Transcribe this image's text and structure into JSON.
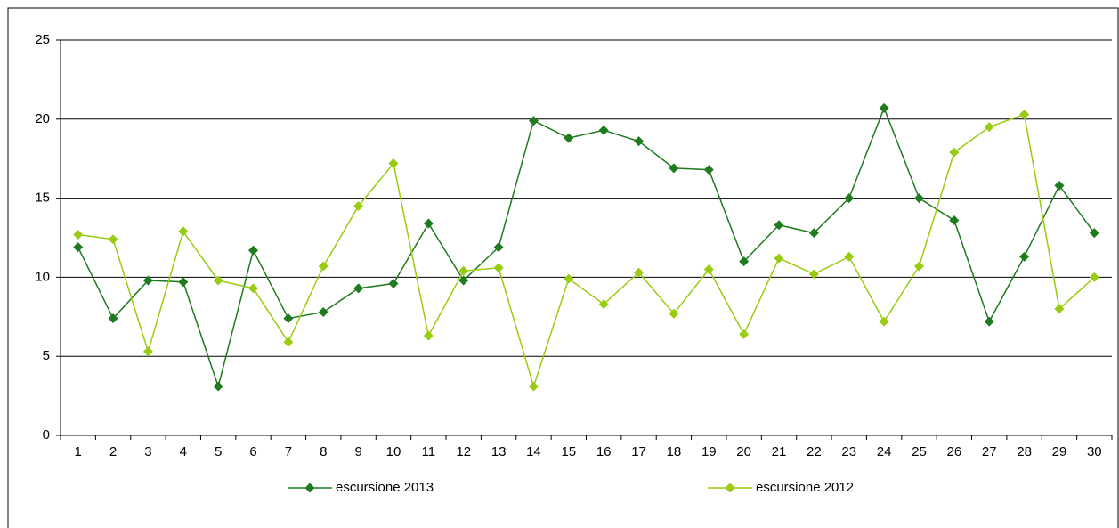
{
  "chart_data": {
    "type": "line",
    "categories": [
      "1",
      "2",
      "3",
      "4",
      "5",
      "6",
      "7",
      "8",
      "9",
      "10",
      "11",
      "12",
      "13",
      "14",
      "15",
      "16",
      "17",
      "18",
      "19",
      "20",
      "21",
      "22",
      "23",
      "24",
      "25",
      "26",
      "27",
      "28",
      "29",
      "30"
    ],
    "series": [
      {
        "name": "escursione 2013",
        "color": "#1e7b1e",
        "values": [
          11.9,
          7.4,
          9.8,
          9.7,
          3.1,
          11.7,
          7.4,
          7.8,
          9.3,
          9.6,
          13.4,
          9.8,
          11.9,
          19.9,
          18.8,
          19.3,
          18.6,
          16.9,
          16.8,
          11.0,
          13.3,
          12.8,
          15.0,
          20.7,
          15.0,
          13.6,
          7.2,
          11.3,
          15.8,
          12.8
        ]
      },
      {
        "name": "escursione 2012",
        "color": "#99cc11",
        "values": [
          12.7,
          12.4,
          5.3,
          12.9,
          9.8,
          9.3,
          5.9,
          10.7,
          14.5,
          17.2,
          6.3,
          10.4,
          10.6,
          3.1,
          9.9,
          8.3,
          10.3,
          7.7,
          10.5,
          6.4,
          11.2,
          10.2,
          11.3,
          7.2,
          10.7,
          17.9,
          19.5,
          20.3,
          8.0,
          10.0
        ]
      }
    ],
    "ylim": [
      0,
      25
    ],
    "yticks": [
      0,
      5,
      10,
      15,
      20,
      25
    ],
    "grid": true,
    "legend": "bottom"
  }
}
